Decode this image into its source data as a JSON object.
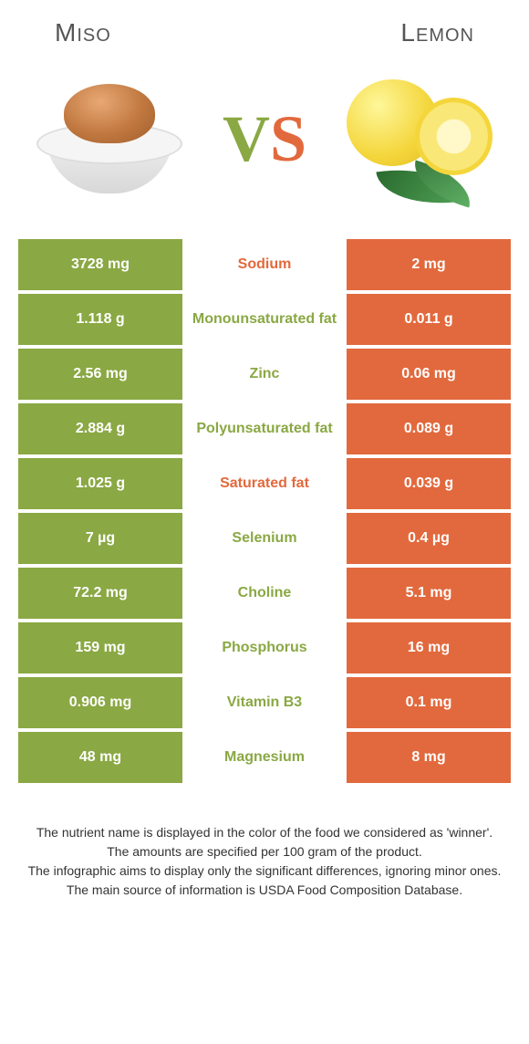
{
  "header": {
    "left": "Miso",
    "right": "Lemon"
  },
  "vs": {
    "v": "V",
    "s": "S"
  },
  "colors": {
    "left": "#8aa843",
    "right": "#e2693d",
    "mid_bg": "#ffffff"
  },
  "rows": [
    {
      "left": "3728 mg",
      "label": "Sodium",
      "right": "2 mg",
      "winner": "orange"
    },
    {
      "left": "1.118 g",
      "label": "Monounsaturated fat",
      "right": "0.011 g",
      "winner": "green"
    },
    {
      "left": "2.56 mg",
      "label": "Zinc",
      "right": "0.06 mg",
      "winner": "green"
    },
    {
      "left": "2.884 g",
      "label": "Polyunsaturated fat",
      "right": "0.089 g",
      "winner": "green"
    },
    {
      "left": "1.025 g",
      "label": "Saturated fat",
      "right": "0.039 g",
      "winner": "orange"
    },
    {
      "left": "7 µg",
      "label": "Selenium",
      "right": "0.4 µg",
      "winner": "green"
    },
    {
      "left": "72.2 mg",
      "label": "Choline",
      "right": "5.1 mg",
      "winner": "green"
    },
    {
      "left": "159 mg",
      "label": "Phosphorus",
      "right": "16 mg",
      "winner": "green"
    },
    {
      "left": "0.906 mg",
      "label": "Vitamin B3",
      "right": "0.1 mg",
      "winner": "green"
    },
    {
      "left": "48 mg",
      "label": "Magnesium",
      "right": "8 mg",
      "winner": "green"
    }
  ],
  "footnotes": [
    "The nutrient name is displayed in the color of the food we considered as 'winner'.",
    "The amounts are specified per 100 gram of the product.",
    "The infographic aims to display only the significant differences, ignoring minor ones.",
    "The main source of information is USDA Food Composition Database."
  ]
}
